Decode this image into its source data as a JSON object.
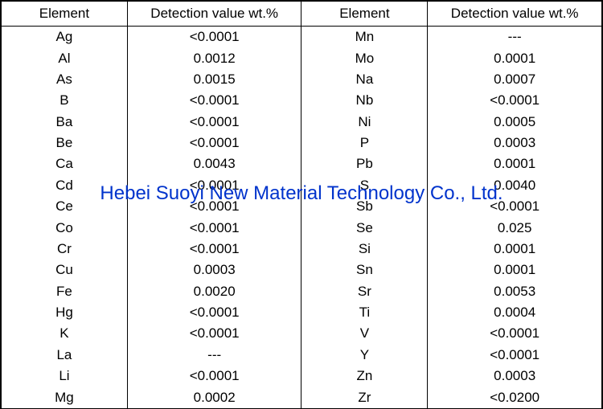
{
  "headers": {
    "element": "Element",
    "detection": "Detection value wt.%"
  },
  "rows": [
    {
      "e1": "Ag",
      "v1": "<0.0001",
      "e2": "Mn",
      "v2": "---"
    },
    {
      "e1": "Al",
      "v1": "0.0012",
      "e2": "Mo",
      "v2": "0.0001"
    },
    {
      "e1": "As",
      "v1": "0.0015",
      "e2": "Na",
      "v2": "0.0007"
    },
    {
      "e1": "B",
      "v1": "<0.0001",
      "e2": "Nb",
      "v2": "<0.0001"
    },
    {
      "e1": "Ba",
      "v1": "<0.0001",
      "e2": "Ni",
      "v2": "0.0005"
    },
    {
      "e1": "Be",
      "v1": "<0.0001",
      "e2": "P",
      "v2": "0.0003"
    },
    {
      "e1": "Ca",
      "v1": "0.0043",
      "e2": "Pb",
      "v2": "0.0001"
    },
    {
      "e1": "Cd",
      "v1": "<0.0001",
      "e2": "S",
      "v2": "0.0040"
    },
    {
      "e1": "Ce",
      "v1": "<0.0001",
      "e2": "Sb",
      "v2": "<0.0001"
    },
    {
      "e1": "Co",
      "v1": "<0.0001",
      "e2": "Se",
      "v2": "0.025"
    },
    {
      "e1": "Cr",
      "v1": "<0.0001",
      "e2": "Si",
      "v2": "0.0001"
    },
    {
      "e1": "Cu",
      "v1": "0.0003",
      "e2": "Sn",
      "v2": "0.0001"
    },
    {
      "e1": "Fe",
      "v1": "0.0020",
      "e2": "Sr",
      "v2": "0.0053"
    },
    {
      "e1": "Hg",
      "v1": "<0.0001",
      "e2": "Ti",
      "v2": "0.0004"
    },
    {
      "e1": "K",
      "v1": "<0.0001",
      "e2": "V",
      "v2": "<0.0001"
    },
    {
      "e1": "La",
      "v1": "---",
      "e2": "Y",
      "v2": "<0.0001"
    },
    {
      "e1": "Li",
      "v1": "<0.0001",
      "e2": "Zn",
      "v2": "0.0003"
    },
    {
      "e1": "Mg",
      "v1": "0.0002",
      "e2": "Zr",
      "v2": "<0.0200"
    }
  ],
  "watermark": "Hebei Suoyi New Material Technology Co., Ltd.",
  "colors": {
    "border": "#000000",
    "text": "#000000",
    "watermark": "#0033cc",
    "background": "#ffffff"
  },
  "font_sizes": {
    "cell": 17,
    "watermark": 24
  }
}
